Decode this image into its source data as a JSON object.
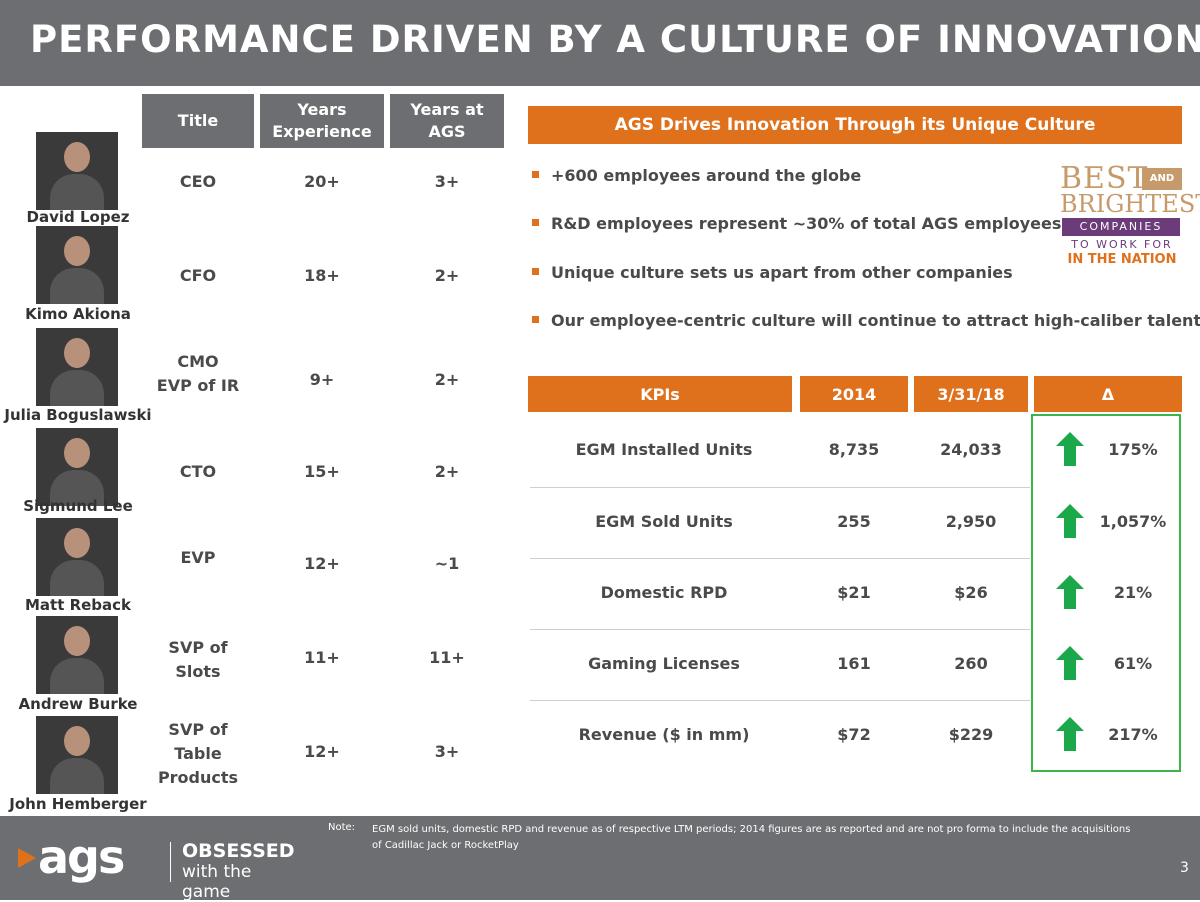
{
  "title": "PERFORMANCE DRIVEN BY A CULTURE OF INNOVATION",
  "team_table": {
    "headers": [
      "Title",
      "Years\nExperience",
      "Years at\nAGS"
    ],
    "rows": [
      {
        "name": "David Lopez",
        "title": "CEO",
        "experience": "20+",
        "at_ags": "3+"
      },
      {
        "name": "Kimo Akiona",
        "title": "CFO",
        "experience": "18+",
        "at_ags": "2+"
      },
      {
        "name": "Julia Boguslawski",
        "title": "CMO\nEVP of IR",
        "experience": "9+",
        "at_ags": "2+"
      },
      {
        "name": "Sigmund Lee",
        "title": "CTO",
        "experience": "15+",
        "at_ags": "2+"
      },
      {
        "name": "Matt Reback",
        "title": "EVP",
        "experience": "12+",
        "at_ags": "~1"
      },
      {
        "name": "Andrew Burke",
        "title": "SVP of\nSlots",
        "experience": "11+",
        "at_ags": "11+"
      },
      {
        "name": "John Hemberger",
        "title": "SVP of\nTable\nProducts",
        "experience": "12+",
        "at_ags": "3+"
      }
    ]
  },
  "culture": {
    "banner": "AGS Drives Innovation Through its Unique Culture",
    "bullets": [
      "+600 employees around the globe",
      "R&D employees represent ~30% of total AGS employees",
      "Unique culture sets us apart from other companies",
      "Our employee-centric culture will continue to attract high-caliber talent"
    ],
    "award": {
      "best": "BEST",
      "and": "AND",
      "brightest": "BRIGHTEST",
      "companies": "COMPANIES",
      "to_work_for": "TO WORK FOR",
      "in_the_nation": "IN THE NATION"
    }
  },
  "kpi_table": {
    "headers": [
      "KPIs",
      "2014",
      "3/31/18",
      "Δ"
    ],
    "rows": [
      {
        "kpi": "EGM Installed Units",
        "y2014": "8,735",
        "y2018": "24,033",
        "delta": "175%"
      },
      {
        "kpi": "EGM Sold Units",
        "y2014": "255",
        "y2018": "2,950",
        "delta": "1,057%"
      },
      {
        "kpi": "Domestic RPD",
        "y2014": "$21",
        "y2018": "$26",
        "delta": "21%"
      },
      {
        "kpi": "Gaming Licenses",
        "y2014": "161",
        "y2018": "260",
        "delta": "61%"
      },
      {
        "kpi": "Revenue ($ in mm)",
        "y2014": "$72",
        "y2018": "$229",
        "delta": "217%"
      }
    ],
    "arrow_icon": "up-arrow-icon",
    "arrow_color": "#1aa84a"
  },
  "footer": {
    "note_label": "Note:",
    "note": "EGM sold units, domestic RPD and revenue as of respective LTM periods; 2014 figures are as reported and are not pro forma to include the acquisitions of Cadillac Jack or RocketPlay",
    "brand_ags": "ags",
    "brand_obsessed": "OBSESSED",
    "brand_tagline": "with the game",
    "page_number": "3"
  },
  "colors": {
    "header_gray": "#6d6e71",
    "accent_orange": "#e0711c",
    "delta_border": "#3cb44a"
  }
}
